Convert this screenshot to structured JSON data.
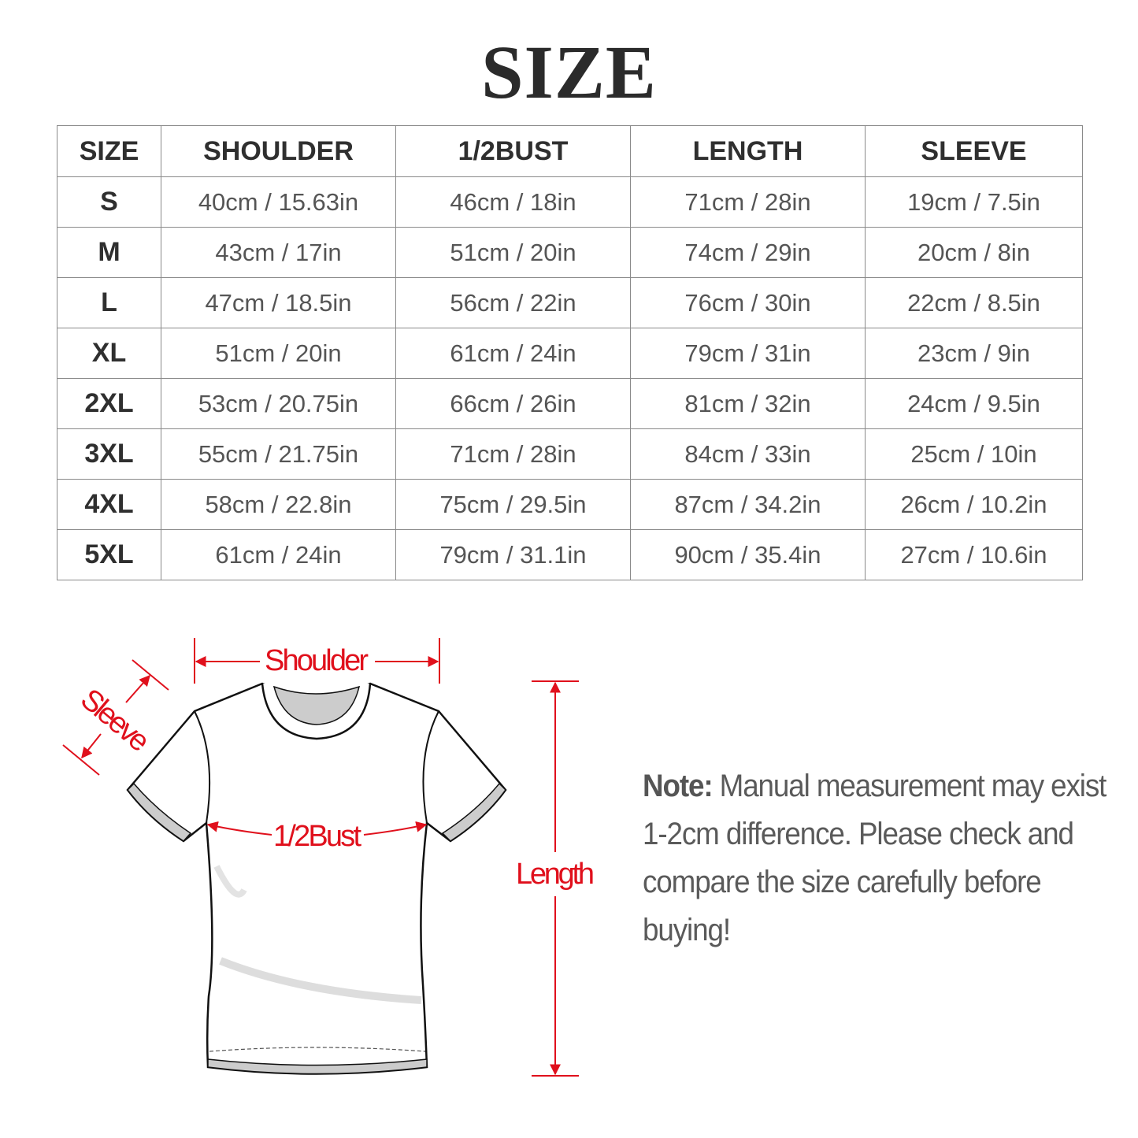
{
  "title": "SIZE",
  "table": {
    "headers": [
      "SIZE",
      "SHOULDER",
      "1/2BUST",
      "LENGTH",
      "SLEEVE"
    ],
    "rows": [
      [
        "S",
        "40cm / 15.63in",
        "46cm / 18in",
        "71cm / 28in",
        "19cm / 7.5in"
      ],
      [
        "M",
        "43cm / 17in",
        "51cm / 20in",
        "74cm / 29in",
        "20cm / 8in"
      ],
      [
        "L",
        "47cm / 18.5in",
        "56cm / 22in",
        "76cm / 30in",
        "22cm / 8.5in"
      ],
      [
        "XL",
        "51cm / 20in",
        "61cm / 24in",
        "79cm / 31in",
        "23cm / 9in"
      ],
      [
        "2XL",
        "53cm / 20.75in",
        "66cm / 26in",
        "81cm / 32in",
        "24cm / 9.5in"
      ],
      [
        "3XL",
        "55cm / 21.75in",
        "71cm / 28in",
        "84cm / 33in",
        "25cm / 10in"
      ],
      [
        "4XL",
        "58cm / 22.8in",
        "75cm / 29.5in",
        "87cm / 34.2in",
        "26cm / 10.2in"
      ],
      [
        "5XL",
        "61cm / 24in",
        "79cm / 31.1in",
        "90cm / 35.4in",
        "27cm / 10.6in"
      ]
    ]
  },
  "diagram": {
    "shoulder": "Shoulder",
    "sleeve": "Sleeve",
    "bust": "1/2Bust",
    "length": "Length",
    "accent_color": "#e0101c"
  },
  "note": {
    "label": "Note:",
    "text": " Manual measurement may exist 1-2cm difference. Please check and compare the size carefully before buying!"
  }
}
